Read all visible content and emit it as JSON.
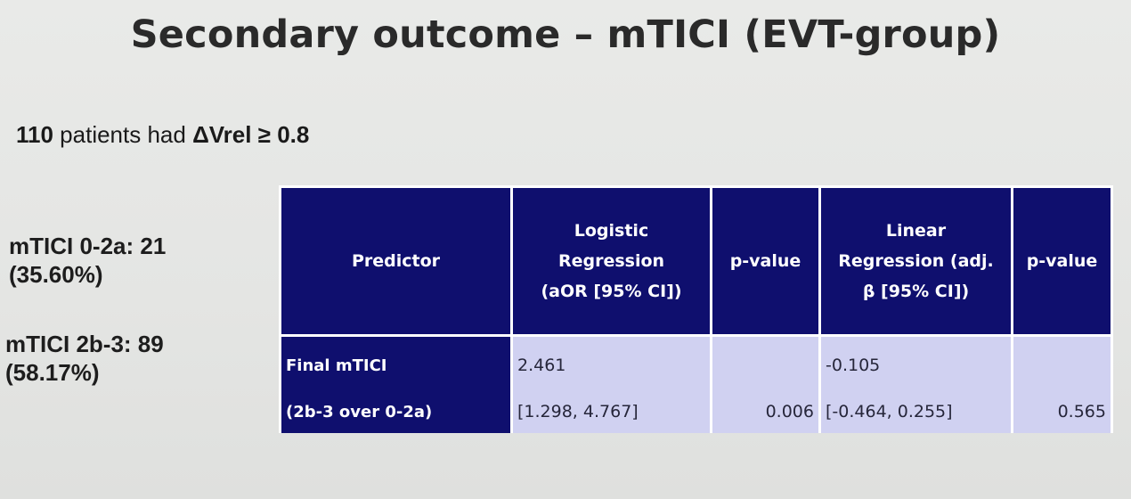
{
  "slide": {
    "title": "Secondary outcome – mTICI (EVT-group)"
  },
  "summary": {
    "count": "110",
    "text_middle": " patients had ",
    "threshold": "ΔVrel ≥ 0.8"
  },
  "groups": [
    {
      "line1": "mTICI 0-2a: 21",
      "line2": "(35.60%)"
    },
    {
      "line1": "mTICI 2b-3: 89",
      "line2": "(58.17%)"
    }
  ],
  "table": {
    "headers": {
      "predictor": "Predictor",
      "logistic": [
        "Logistic",
        "Regression",
        "(aOR [95% CI])"
      ],
      "pvalue1": "p-value",
      "linear": [
        "Linear",
        "Regression (adj.",
        "β [95% CI])"
      ],
      "pvalue2": "p-value"
    },
    "row": {
      "predictor_line1": "Final mTICI",
      "predictor_line2": "(2b-3 over 0-2a)",
      "logistic_estimate": "2.461",
      "logistic_ci": "[1.298, 4.767]",
      "logistic_p": "0.006",
      "linear_estimate": "-0.105",
      "linear_ci": "[-0.464, 0.255]",
      "linear_p": "0.565"
    }
  }
}
